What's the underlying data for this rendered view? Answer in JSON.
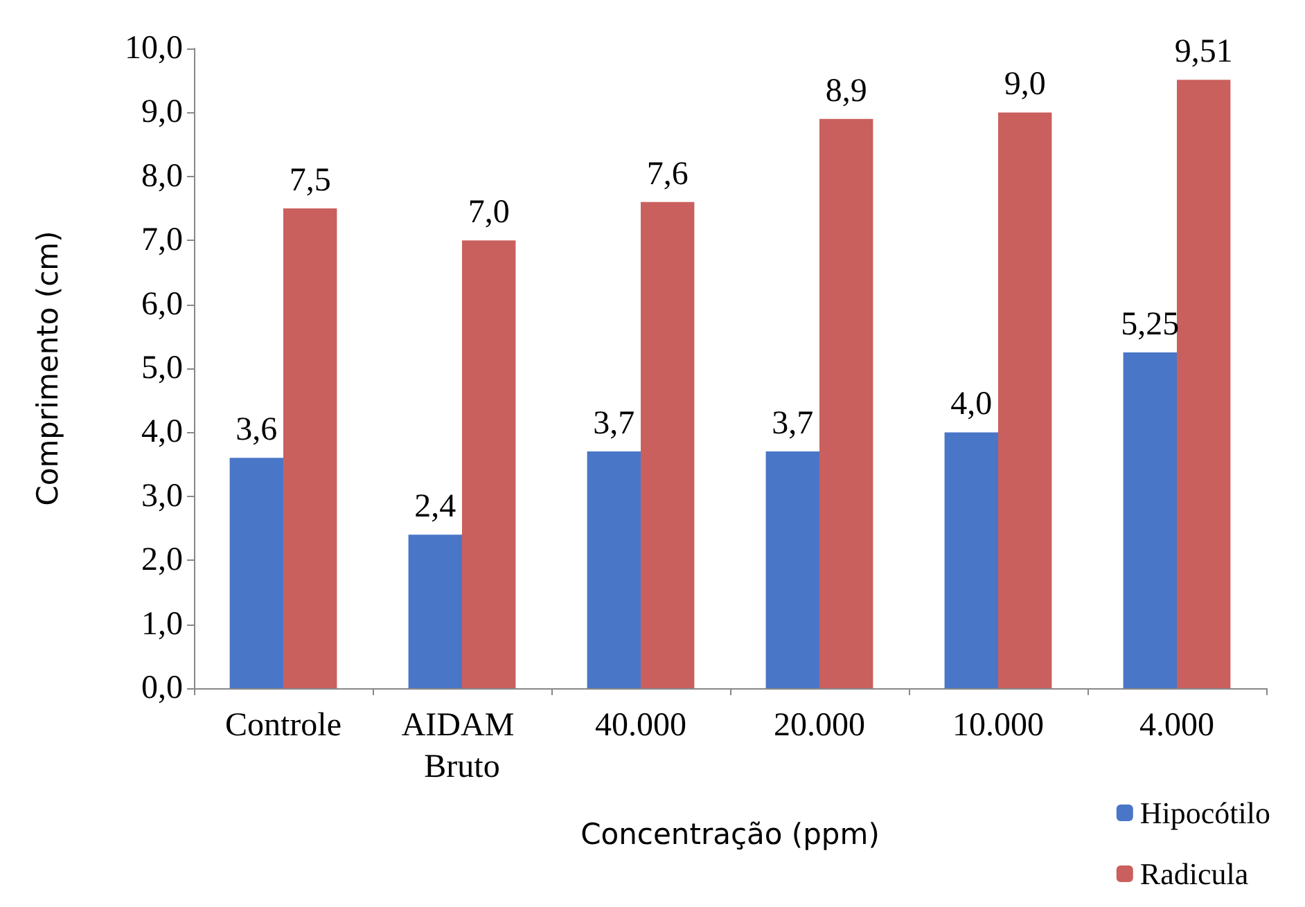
{
  "chart_data": {
    "type": "bar",
    "xlabel": "Concentração (ppm)",
    "ylabel": "Comprimento (cm)",
    "categories": [
      "Controle",
      "AIDAM Bruto",
      "40.000",
      "20.000",
      "10.000",
      "4.000"
    ],
    "series": [
      {
        "name": "Hipocótilo",
        "color": "#4a76c8",
        "values": [
          3.6,
          2.4,
          3.7,
          3.7,
          4.0,
          5.25
        ],
        "value_labels": [
          "3,6",
          "2,4",
          "3,7",
          "3,7",
          "4,0",
          "5,25"
        ]
      },
      {
        "name": "Radicula",
        "color": "#c9605e",
        "values": [
          7.5,
          7.0,
          7.6,
          8.9,
          9.0,
          9.51
        ],
        "value_labels": [
          "7,5",
          "7,0",
          "7,6",
          "8,9",
          "9,0",
          "9,51"
        ]
      }
    ],
    "ylim": [
      0,
      10
    ],
    "yticks": [
      {
        "value": 0,
        "label": "0,0"
      },
      {
        "value": 1,
        "label": "1,0"
      },
      {
        "value": 2,
        "label": "2,0"
      },
      {
        "value": 3,
        "label": "3,0"
      },
      {
        "value": 4,
        "label": "4,0"
      },
      {
        "value": 5,
        "label": "5,0"
      },
      {
        "value": 6,
        "label": "6,0"
      },
      {
        "value": 7,
        "label": "7,0"
      },
      {
        "value": 8,
        "label": "8,0"
      },
      {
        "value": 9,
        "label": "9,0"
      },
      {
        "value": 10,
        "label": "10,0"
      }
    ],
    "grid": false,
    "legend": "bottom right"
  }
}
